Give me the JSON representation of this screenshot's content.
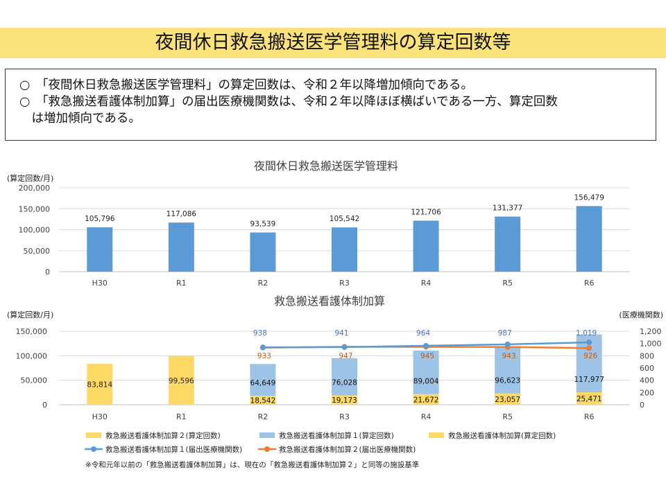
{
  "header": {
    "title": "夜間休日救急搬送医学管理料の算定回数等"
  },
  "summary": {
    "lines": [
      "○　「夜間休日救急搬送医学管理料」の算定回数は、令和２年以降増加傾向である。",
      "○　「救急搬送看護体制加算」の届出医療機関数は、令和２年以降ほぼ横ばいである一方、算定回数",
      "　は増加傾向である。"
    ]
  },
  "chart_data": [
    {
      "type": "bar",
      "title": "夜間休日救急搬送医学管理料",
      "ylabel": "(算定回数/月)",
      "categories": [
        "H30",
        "R1",
        "R2",
        "R3",
        "R4",
        "R5",
        "R6"
      ],
      "values": [
        105796,
        117086,
        93539,
        105542,
        121706,
        131377,
        156479
      ],
      "value_labels": [
        "105,796",
        "117,086",
        "93,539",
        "105,542",
        "121,706",
        "131,377",
        "156,479"
      ],
      "ylim": [
        0,
        200000
      ],
      "yticks": [
        "0",
        "50,000",
        "100,000",
        "150,000",
        "200,000"
      ],
      "grid": true,
      "color": "#5b9bd5"
    },
    {
      "type": "bar",
      "title": "救急搬送看護体制加算",
      "ylabel": "(算定回数/月)",
      "y2label": "(医療機関数)",
      "categories": [
        "H30",
        "R1",
        "R2",
        "R3",
        "R4",
        "R5",
        "R6"
      ],
      "ylim": [
        0,
        150000
      ],
      "yticks": [
        "0",
        "50,000",
        "100,000",
        "150,000"
      ],
      "y2lim": [
        0,
        1200
      ],
      "y2ticks": [
        "0",
        "200",
        "400",
        "600",
        "800",
        "1,000",
        "1,200"
      ],
      "grid": true,
      "legend_position": "bottom",
      "series": [
        {
          "name": "救急搬送看護体制加算２(算定回数)",
          "kind": "bar",
          "color": "#ffd966",
          "values": [
            null,
            null,
            18542,
            19173,
            21672,
            23057,
            25471
          ],
          "labels": [
            "",
            "",
            "18,542",
            "19,173",
            "21,672",
            "23,057",
            "25,471"
          ]
        },
        {
          "name": "救急搬送看護体制加算１(算定回数)",
          "kind": "bar",
          "color": "#9dc3e6",
          "values": [
            null,
            null,
            64649,
            76028,
            89004,
            96623,
            117977
          ],
          "labels": [
            "",
            "",
            "64,649",
            "76,028",
            "89,004",
            "96,623",
            "117,977"
          ]
        },
        {
          "name": "救急搬送看護体制加算(算定回数)",
          "kind": "bar",
          "color": "#ffd966",
          "values": [
            83814,
            99596,
            null,
            null,
            null,
            null,
            null
          ],
          "labels": [
            "83,814",
            "99,596",
            "",
            "",
            "",
            "",
            ""
          ]
        },
        {
          "name": "救急搬送看護体制加算１(届出医療機関数)",
          "kind": "line",
          "axis": "right",
          "color": "#5b9bd5",
          "values": [
            null,
            null,
            938,
            941,
            964,
            987,
            1019
          ],
          "labels": [
            "",
            "",
            "938",
            "941",
            "964",
            "987",
            "1,019"
          ]
        },
        {
          "name": "救急搬送看護体制加算２(届出医療機関数)",
          "kind": "line",
          "axis": "right",
          "color": "#ed7d31",
          "values": [
            null,
            null,
            933,
            947,
            945,
            943,
            926
          ],
          "labels": [
            "",
            "",
            "933",
            "947",
            "945",
            "943",
            "926"
          ]
        }
      ]
    }
  ],
  "footnote": "※令和元年以前の「救急搬送看護体制加算」は、現在の「救急搬送看護体制加算２」と同等の施設基準"
}
